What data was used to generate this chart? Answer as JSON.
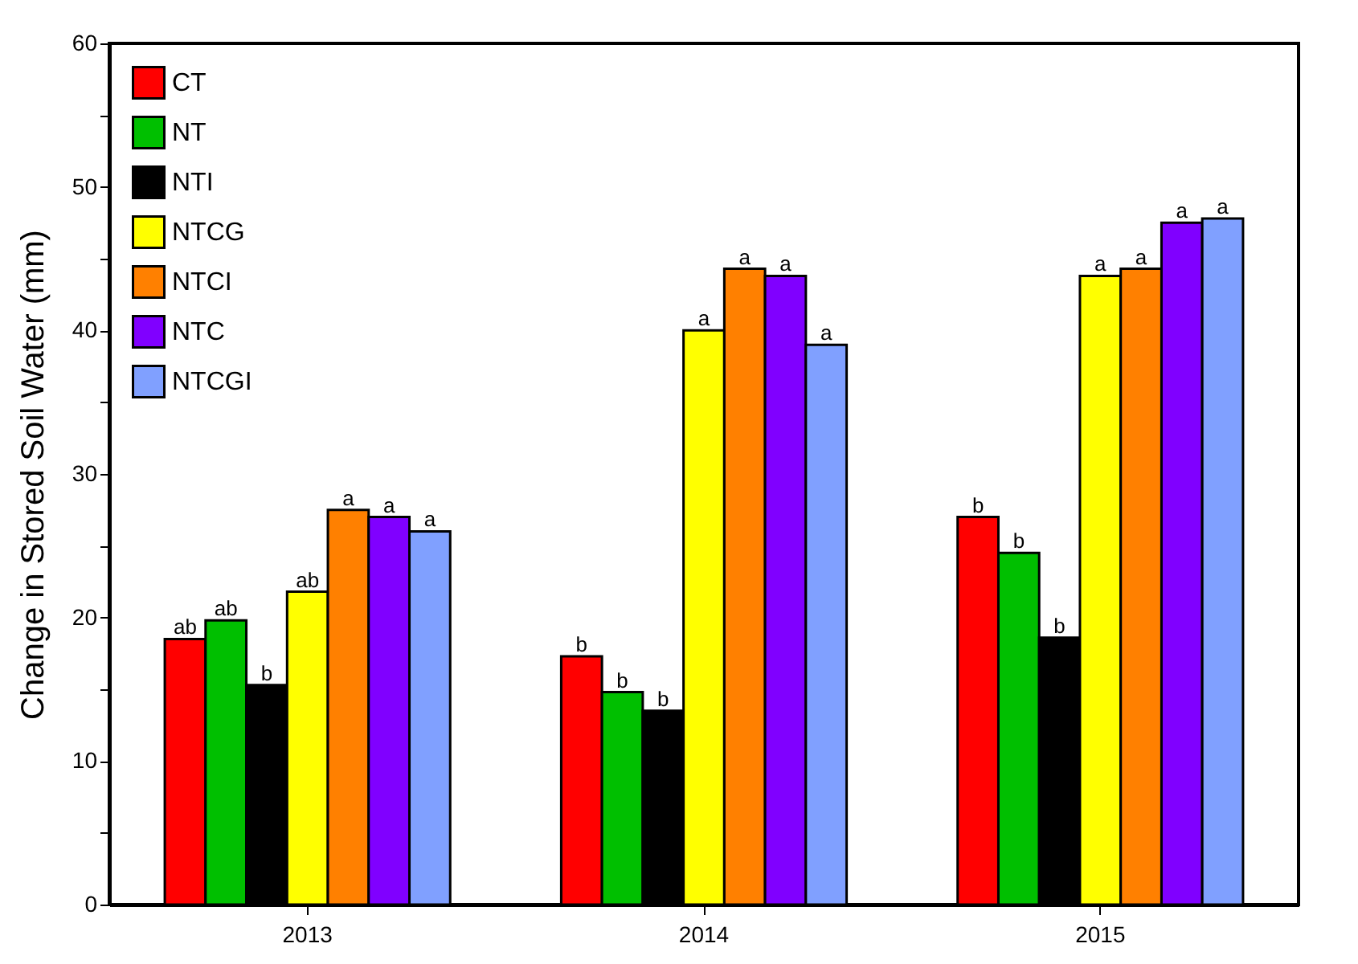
{
  "chart_data": {
    "type": "bar",
    "ylabel": "Change in Stored Soil Water (mm)",
    "categories": [
      "2013",
      "2014",
      "2015"
    ],
    "series": [
      {
        "name": "CT",
        "color": "#ff0000",
        "values": [
          18.5,
          17.3,
          27.0
        ],
        "value_labels": [
          "ab",
          "b",
          "b"
        ]
      },
      {
        "name": "NT",
        "color": "#00bf00",
        "values": [
          19.8,
          14.8,
          24.5
        ],
        "value_labels": [
          "ab",
          "b",
          "b"
        ]
      },
      {
        "name": "NTI",
        "color": "#000000",
        "values": [
          15.3,
          13.5,
          18.6
        ],
        "value_labels": [
          "b",
          "b",
          "b"
        ]
      },
      {
        "name": "NTCG",
        "color": "#ffff00",
        "values": [
          21.8,
          40.0,
          43.8
        ],
        "value_labels": [
          "ab",
          "a",
          "a"
        ]
      },
      {
        "name": "NTCI",
        "color": "#ff8000",
        "values": [
          27.5,
          44.3,
          44.3
        ],
        "value_labels": [
          "a",
          "a",
          "a"
        ]
      },
      {
        "name": "NTC",
        "color": "#8000ff",
        "values": [
          27.0,
          43.8,
          47.5
        ],
        "value_labels": [
          "a",
          "a",
          "a"
        ]
      },
      {
        "name": "NTCGI",
        "color": "#80a0ff",
        "values": [
          26.0,
          39.0,
          47.8
        ],
        "value_labels": [
          "a",
          "a",
          "a"
        ]
      }
    ],
    "ylim": [
      0,
      60
    ],
    "yticks": [
      0,
      {
        "value": 5,
        "label": null
      },
      10,
      {
        "value": 15,
        "label": null
      },
      20,
      {
        "value": 25,
        "label": null
      },
      30,
      {
        "value": 35,
        "label": null
      },
      40,
      {
        "value": 45,
        "label": null
      },
      50,
      {
        "value": 55,
        "label": null
      },
      60
    ],
    "grid": false,
    "legend": "top left"
  }
}
